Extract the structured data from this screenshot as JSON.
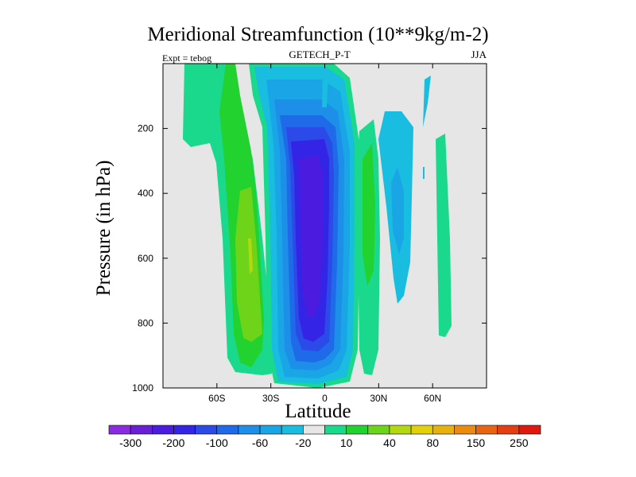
{
  "chart_data": {
    "type": "heatmap",
    "title": "Meridional Streamfunction (10**9kg/m-2)",
    "subtitle_left": "Expt = tebog",
    "subtitle_center": "GETECH_P-T",
    "subtitle_right": "JJA",
    "xlabel": "Latitude",
    "ylabel": "Pressure (in hPa)",
    "xlim": [
      -90,
      90
    ],
    "ylim": [
      1000,
      0
    ],
    "x_ticks": [
      {
        "value": -60,
        "label": "60S"
      },
      {
        "value": -30,
        "label": "30S"
      },
      {
        "value": 0,
        "label": "0"
      },
      {
        "value": 30,
        "label": "30N"
      },
      {
        "value": 60,
        "label": "60N"
      }
    ],
    "y_ticks": [
      {
        "value": 200,
        "label": "200"
      },
      {
        "value": 400,
        "label": "400"
      },
      {
        "value": 600,
        "label": "600"
      },
      {
        "value": 800,
        "label": "800"
      },
      {
        "value": 1000,
        "label": "1000"
      }
    ],
    "background_color": "#e6e6e6",
    "colorbar": {
      "colors": [
        "#8a2be2",
        "#6a1fd6",
        "#4b1ce0",
        "#3424e6",
        "#2b4ae8",
        "#1e6ae8",
        "#1e8fe8",
        "#1aa6e6",
        "#19bde0",
        "#e6e6e6",
        "#1ad98c",
        "#22d22e",
        "#6ed41a",
        "#b4d80e",
        "#e2d00a",
        "#e8b20c",
        "#ea8a10",
        "#e86412",
        "#e43e12",
        "#e01810"
      ],
      "labels": [
        "-300",
        "-200",
        "-100",
        "-60",
        "-20",
        "10",
        "40",
        "80",
        "150",
        "250"
      ]
    },
    "features": [
      {
        "name": "southern-positive-cell",
        "lat_range": [
          -70,
          -38
        ],
        "p_range": [
          20,
          960
        ],
        "max_value": 80
      },
      {
        "name": "equatorial-negative-cell",
        "lat_range": [
          -28,
          12
        ],
        "p_range": [
          20,
          990
        ],
        "min_value": -300
      },
      {
        "name": "northern-positive-cell",
        "lat_range": [
          20,
          30
        ],
        "p_range": [
          180,
          960
        ],
        "max_value": 40
      },
      {
        "name": "northern-negative-cell",
        "lat_range": [
          36,
          50
        ],
        "p_range": [
          140,
          720
        ],
        "min_value": -20
      },
      {
        "name": "polar-positive-cell",
        "lat_range": [
          63,
          68
        ],
        "p_range": [
          170,
          840
        ],
        "max_value": 10
      }
    ]
  }
}
